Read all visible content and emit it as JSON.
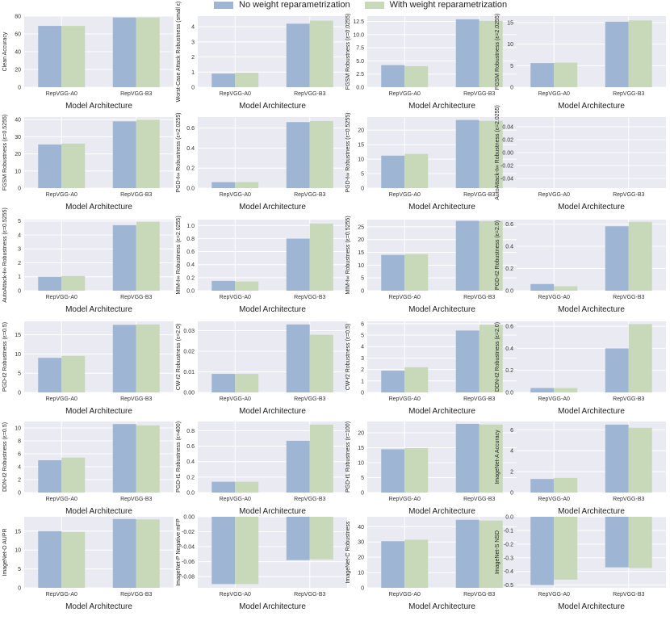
{
  "legend": {
    "items": [
      {
        "label": "No weight reparametrization",
        "color": "#9fb5d4"
      },
      {
        "label": "With weight reparametrization",
        "color": "#c7d9b8"
      }
    ]
  },
  "style": {
    "panel_bg": "#eaeaf2",
    "grid": "#ffffff",
    "color_no": "#9fb5d4",
    "color_with": "#c7d9b8"
  },
  "chart_data": [
    {
      "type": "bar",
      "ylabel": "Clean Accuracy",
      "xlabel": "Model Architecture",
      "categories": [
        "RepVGG-A0",
        "RepVGG-B3"
      ],
      "ylim": [
        0,
        80
      ],
      "yticks": [
        0,
        20,
        40,
        60,
        80
      ],
      "series": [
        {
          "name": "No weight reparametrization",
          "values": [
            69.0,
            78.5
          ]
        },
        {
          "name": "With weight reparametrization",
          "values": [
            69.0,
            78.5
          ]
        }
      ]
    },
    {
      "type": "bar",
      "ylabel": "Worst-Case Attack Robustness (small ε)",
      "xlabel": "Model Architecture",
      "categories": [
        "RepVGG-A0",
        "RepVGG-B3"
      ],
      "ylim": [
        0,
        4.7
      ],
      "yticks": [
        0,
        1,
        2,
        3,
        4
      ],
      "series": [
        {
          "name": "No weight reparametrization",
          "values": [
            0.9,
            4.2
          ]
        },
        {
          "name": "With weight reparametrization",
          "values": [
            0.95,
            4.4
          ]
        }
      ]
    },
    {
      "type": "bar",
      "ylabel": "FGSM Robustness (ε=0.0255)",
      "xlabel": "Model Architecture",
      "categories": [
        "RepVGG-A0",
        "RepVGG-B3"
      ],
      "ylim": [
        0,
        13.5
      ],
      "yticks": [
        0.0,
        2.5,
        5.0,
        7.5,
        10.0,
        12.5
      ],
      "series": [
        {
          "name": "No weight reparametrization",
          "values": [
            4.2,
            12.9
          ]
        },
        {
          "name": "With weight reparametrization",
          "values": [
            4.0,
            12.6
          ]
        }
      ]
    },
    {
      "type": "bar",
      "ylabel": "FGSM Robustness (ε=2.0255)",
      "xlabel": "Model Architecture",
      "categories": [
        "RepVGG-A0",
        "RepVGG-B3"
      ],
      "ylim": [
        0,
        16.5
      ],
      "yticks": [
        0,
        5,
        10,
        15
      ],
      "series": [
        {
          "name": "No weight reparametrization",
          "values": [
            5.6,
            15.2
          ]
        },
        {
          "name": "With weight reparametrization",
          "values": [
            5.7,
            15.5
          ]
        }
      ]
    },
    {
      "type": "bar",
      "ylabel": "FGSM Robustness (ε=0.5255)",
      "xlabel": "Model Architecture",
      "categories": [
        "RepVGG-A0",
        "RepVGG-B3"
      ],
      "ylim": [
        0,
        41.5
      ],
      "yticks": [
        0,
        10,
        20,
        30,
        40
      ],
      "series": [
        {
          "name": "No weight reparametrization",
          "values": [
            25.5,
            39.0
          ]
        },
        {
          "name": "With weight reparametrization",
          "values": [
            26.0,
            40.0
          ]
        }
      ]
    },
    {
      "type": "bar",
      "ylabel": "PGD-ℓ∞ Robustness (ε=2.0255)",
      "xlabel": "Model Architecture",
      "categories": [
        "RepVGG-A0",
        "RepVGG-B3"
      ],
      "ylim": [
        0,
        0.71
      ],
      "yticks": [
        0.0,
        0.2,
        0.4,
        0.6
      ],
      "series": [
        {
          "name": "No weight reparametrization",
          "values": [
            0.06,
            0.66
          ]
        },
        {
          "name": "With weight reparametrization",
          "values": [
            0.06,
            0.67
          ]
        }
      ]
    },
    {
      "type": "bar",
      "ylabel": "PGD-ℓ∞ Robustness (ε=0.5255)",
      "xlabel": "Model Architecture",
      "categories": [
        "RepVGG-A0",
        "RepVGG-B3"
      ],
      "ylim": [
        0,
        24.5
      ],
      "yticks": [
        0,
        5,
        10,
        15,
        20
      ],
      "series": [
        {
          "name": "No weight reparametrization",
          "values": [
            11.2,
            23.5
          ]
        },
        {
          "name": "With weight reparametrization",
          "values": [
            11.8,
            23.2
          ]
        }
      ]
    },
    {
      "type": "bar",
      "ylabel": "AutoAttack-ℓ∞ Robustness (ε=2.0255)",
      "xlabel": "Model Architecture",
      "categories": [
        "RepVGG-A0",
        "RepVGG-B3"
      ],
      "ylim": [
        -0.055,
        0.055
      ],
      "yticks": [
        -0.04,
        -0.02,
        0.0,
        0.02,
        0.04
      ],
      "series": [
        {
          "name": "No weight reparametrization",
          "values": [
            0,
            0
          ]
        },
        {
          "name": "With weight reparametrization",
          "values": [
            0,
            0
          ]
        }
      ]
    },
    {
      "type": "bar",
      "ylabel": "AutoAttack-ℓ∞ Robustness (ε=0.5255)",
      "xlabel": "Model Architecture",
      "categories": [
        "RepVGG-A0",
        "RepVGG-B3"
      ],
      "ylim": [
        0,
        5.1
      ],
      "yticks": [
        0,
        1,
        2,
        3,
        4,
        5
      ],
      "series": [
        {
          "name": "No weight reparametrization",
          "values": [
            1.0,
            4.7
          ]
        },
        {
          "name": "With weight reparametrization",
          "values": [
            1.05,
            4.95
          ]
        }
      ]
    },
    {
      "type": "bar",
      "ylabel": "MIM-ℓ∞ Robustness (ε=2.0255)",
      "xlabel": "Model Architecture",
      "categories": [
        "RepVGG-A0",
        "RepVGG-B3"
      ],
      "ylim": [
        0,
        1.09
      ],
      "yticks": [
        0.0,
        0.2,
        0.4,
        0.6,
        0.8,
        1.0
      ],
      "series": [
        {
          "name": "No weight reparametrization",
          "values": [
            0.15,
            0.8
          ]
        },
        {
          "name": "With weight reparametrization",
          "values": [
            0.14,
            1.03
          ]
        }
      ]
    },
    {
      "type": "bar",
      "ylabel": "MIM-ℓ∞ Robustness (ε=0.5255)",
      "xlabel": "Model Architecture",
      "categories": [
        "RepVGG-A0",
        "RepVGG-B3"
      ],
      "ylim": [
        0,
        27.8
      ],
      "yticks": [
        0,
        5,
        10,
        15,
        20,
        25
      ],
      "series": [
        {
          "name": "No weight reparametrization",
          "values": [
            14.0,
            27.3
          ]
        },
        {
          "name": "With weight reparametrization",
          "values": [
            14.3,
            27.2
          ]
        }
      ]
    },
    {
      "type": "bar",
      "ylabel": "PGD-ℓ2 Robustness (ε=2.0)",
      "xlabel": "Model Architecture",
      "categories": [
        "RepVGG-A0",
        "RepVGG-B3"
      ],
      "ylim": [
        0,
        0.64
      ],
      "yticks": [
        0.0,
        0.2,
        0.4,
        0.6
      ],
      "series": [
        {
          "name": "No weight reparametrization",
          "values": [
            0.06,
            0.58
          ]
        },
        {
          "name": "With weight reparametrization",
          "values": [
            0.04,
            0.62
          ]
        }
      ]
    },
    {
      "type": "bar",
      "ylabel": "PGD-ℓ2 Robustness (ε=0.5)",
      "xlabel": "Model Architecture",
      "categories": [
        "RepVGG-A0",
        "RepVGG-B3"
      ],
      "ylim": [
        0,
        18.5
      ],
      "yticks": [
        0,
        5,
        10,
        15
      ],
      "series": [
        {
          "name": "No weight reparametrization",
          "values": [
            9.0,
            17.6
          ]
        },
        {
          "name": "With weight reparametrization",
          "values": [
            9.5,
            17.7
          ]
        }
      ]
    },
    {
      "type": "bar",
      "ylabel": "CW-ℓ2 Robustness (ε=2.0)",
      "xlabel": "Model Architecture",
      "categories": [
        "RepVGG-A0",
        "RepVGG-B3"
      ],
      "ylim": [
        0,
        0.0345
      ],
      "yticks": [
        0.0,
        0.01,
        0.02,
        0.03
      ],
      "series": [
        {
          "name": "No weight reparametrization",
          "values": [
            0.009,
            0.033
          ]
        },
        {
          "name": "With weight reparametrization",
          "values": [
            0.009,
            0.028
          ]
        }
      ]
    },
    {
      "type": "bar",
      "ylabel": "CW-ℓ2 Robustness (ε=0.5)",
      "xlabel": "Model Architecture",
      "categories": [
        "RepVGG-A0",
        "RepVGG-B3"
      ],
      "ylim": [
        0,
        6.2
      ],
      "yticks": [
        0,
        1,
        2,
        3,
        4,
        5,
        6
      ],
      "series": [
        {
          "name": "No weight reparametrization",
          "values": [
            1.9,
            5.4
          ]
        },
        {
          "name": "With weight reparametrization",
          "values": [
            2.2,
            5.9
          ]
        }
      ]
    },
    {
      "type": "bar",
      "ylabel": "DDN-ℓ2 Robustness (ε=2.0)",
      "xlabel": "Model Architecture",
      "categories": [
        "RepVGG-A0",
        "RepVGG-B3"
      ],
      "ylim": [
        0,
        0.645
      ],
      "yticks": [
        0.0,
        0.2,
        0.4,
        0.6
      ],
      "series": [
        {
          "name": "No weight reparametrization",
          "values": [
            0.04,
            0.4
          ]
        },
        {
          "name": "With weight reparametrization",
          "values": [
            0.04,
            0.62
          ]
        }
      ]
    },
    {
      "type": "bar",
      "ylabel": "DDN-ℓ2 Robustness (ε=0.5)",
      "xlabel": "Model Architecture",
      "categories": [
        "RepVGG-A0",
        "RepVGG-B3"
      ],
      "ylim": [
        0,
        11.0
      ],
      "yticks": [
        0,
        2,
        4,
        6,
        8,
        10
      ],
      "series": [
        {
          "name": "No weight reparametrization",
          "values": [
            5.0,
            10.6
          ]
        },
        {
          "name": "With weight reparametrization",
          "values": [
            5.4,
            10.4
          ]
        }
      ]
    },
    {
      "type": "bar",
      "ylabel": "PGD-ℓ1 Robustness (ε=400)",
      "xlabel": "Model Architecture",
      "categories": [
        "RepVGG-A0",
        "RepVGG-B3"
      ],
      "ylim": [
        0,
        0.92
      ],
      "yticks": [
        0.0,
        0.2,
        0.4,
        0.6,
        0.8
      ],
      "series": [
        {
          "name": "No weight reparametrization",
          "values": [
            0.14,
            0.67
          ]
        },
        {
          "name": "With weight reparametrization",
          "values": [
            0.14,
            0.88
          ]
        }
      ]
    },
    {
      "type": "bar",
      "ylabel": "PGD-ℓ1 Robustness (ε=100)",
      "xlabel": "Model Architecture",
      "categories": [
        "RepVGG-A0",
        "RepVGG-B3"
      ],
      "ylim": [
        0,
        23.8
      ],
      "yticks": [
        0,
        5,
        10,
        15,
        20
      ],
      "series": [
        {
          "name": "No weight reparametrization",
          "values": [
            14.5,
            23.0
          ]
        },
        {
          "name": "With weight reparametrization",
          "values": [
            14.9,
            22.8
          ]
        }
      ]
    },
    {
      "type": "bar",
      "ylabel": "ImageNet-A Accuracy",
      "xlabel": "Model Architecture",
      "categories": [
        "RepVGG-A0",
        "RepVGG-B3"
      ],
      "ylim": [
        0,
        6.8
      ],
      "yticks": [
        0,
        2,
        4,
        6
      ],
      "series": [
        {
          "name": "No weight reparametrization",
          "values": [
            1.3,
            6.5
          ]
        },
        {
          "name": "With weight reparametrization",
          "values": [
            1.4,
            6.2
          ]
        }
      ]
    },
    {
      "type": "bar",
      "ylabel": "ImageNet-O AUPR",
      "xlabel": "Model Architecture",
      "categories": [
        "RepVGG-A0",
        "RepVGG-B3"
      ],
      "ylim": [
        0,
        18.8
      ],
      "yticks": [
        0,
        5,
        10,
        15
      ],
      "series": [
        {
          "name": "No weight reparametrization",
          "values": [
            15.0,
            18.2
          ]
        },
        {
          "name": "With weight reparametrization",
          "values": [
            14.8,
            18.1
          ]
        }
      ]
    },
    {
      "type": "bar",
      "ylabel": "ImageNet-P Negative mFP",
      "xlabel": "Model Architecture",
      "categories": [
        "RepVGG-A0",
        "RepVGG-B3"
      ],
      "ylim": [
        -0.095,
        0.0
      ],
      "yticks": [
        -0.08,
        -0.06,
        -0.04,
        -0.02,
        0.0
      ],
      "series": [
        {
          "name": "No weight reparametrization",
          "values": [
            -0.09,
            -0.058
          ]
        },
        {
          "name": "With weight reparametrization",
          "values": [
            -0.09,
            -0.057
          ]
        }
      ]
    },
    {
      "type": "bar",
      "ylabel": "ImageNet-C Robustness",
      "xlabel": "Model Architecture",
      "categories": [
        "RepVGG-A0",
        "RepVGG-B3"
      ],
      "ylim": [
        0,
        46.5
      ],
      "yticks": [
        0,
        10,
        20,
        30,
        40
      ],
      "series": [
        {
          "name": "No weight reparametrization",
          "values": [
            30.5,
            44.5
          ]
        },
        {
          "name": "With weight reparametrization",
          "values": [
            31.5,
            44.0
          ]
        }
      ]
    },
    {
      "type": "bar",
      "ylabel": "ImageNet-S NSD",
      "xlabel": "Model Architecture",
      "categories": [
        "RepVGG-A0",
        "RepVGG-B3"
      ],
      "ylim": [
        -0.52,
        0.0
      ],
      "yticks": [
        -0.5,
        -0.4,
        -0.3,
        -0.2,
        -0.1,
        0.0
      ],
      "series": [
        {
          "name": "No weight reparametrization",
          "values": [
            -0.5,
            -0.37
          ]
        },
        {
          "name": "With weight reparametrization",
          "values": [
            -0.46,
            -0.375
          ]
        }
      ]
    }
  ]
}
